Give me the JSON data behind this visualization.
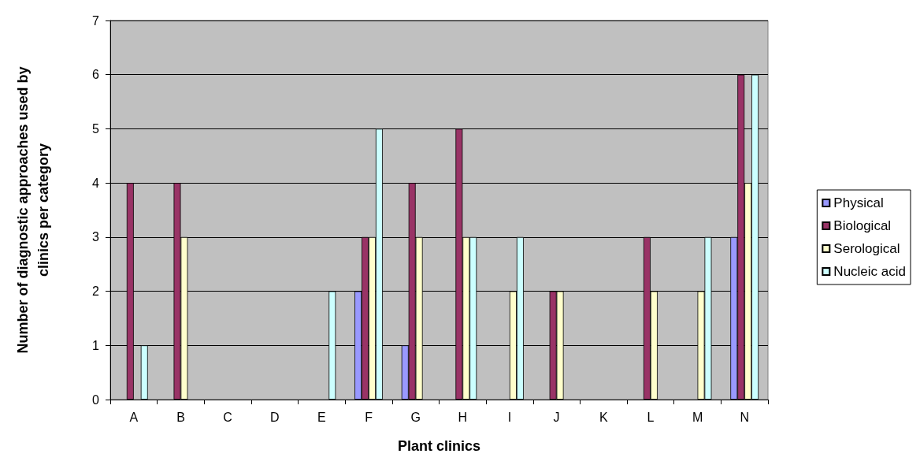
{
  "chart_data": {
    "type": "bar",
    "xlabel": "Plant clinics",
    "ylabel": "Number of diagnostic approaches used by\nclinics per category",
    "categories": [
      "A",
      "B",
      "C",
      "D",
      "E",
      "F",
      "G",
      "H",
      "I",
      "J",
      "K",
      "L",
      "M",
      "N"
    ],
    "series": [
      {
        "name": "Physical",
        "color": "#9999ff",
        "values": [
          0,
          0,
          0,
          0,
          0,
          2,
          1,
          0,
          0,
          0,
          0,
          0,
          0,
          3
        ]
      },
      {
        "name": "Biological",
        "color": "#993366",
        "values": [
          4,
          4,
          0,
          0,
          0,
          3,
          4,
          5,
          0,
          2,
          0,
          3,
          0,
          6
        ]
      },
      {
        "name": "Serological",
        "color": "#ffffcc",
        "values": [
          0,
          3,
          0,
          0,
          0,
          3,
          3,
          3,
          2,
          2,
          0,
          2,
          2,
          4
        ]
      },
      {
        "name": "Nucleic acid",
        "color": "#ccffff",
        "values": [
          1,
          0,
          0,
          0,
          2,
          5,
          0,
          3,
          3,
          0,
          0,
          0,
          3,
          6
        ]
      }
    ],
    "ylim": [
      0,
      7
    ],
    "yticks": [
      0,
      1,
      2,
      3,
      4,
      5,
      6,
      7
    ],
    "grid": "y",
    "legend": "right"
  }
}
